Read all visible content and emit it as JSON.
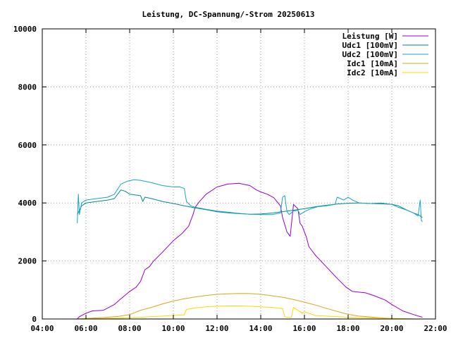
{
  "chart_data": {
    "type": "line",
    "title": "Leistung, DC-Spannung/-Strom 20250613",
    "xlabel": "",
    "ylabel": "",
    "xlim": [
      4,
      22
    ],
    "ylim": [
      0,
      10000
    ],
    "x_ticks": [
      "04:00",
      "06:00",
      "08:00",
      "10:00",
      "12:00",
      "14:00",
      "16:00",
      "18:00",
      "20:00",
      "22:00"
    ],
    "y_ticks": [
      "0",
      "2000",
      "4000",
      "6000",
      "8000",
      "10000"
    ],
    "grid": true,
    "legend_position": "top-right",
    "series": [
      {
        "name": "Leistung [W]",
        "color": "#9400d3",
        "points": [
          [
            5.6,
            0
          ],
          [
            5.7,
            80
          ],
          [
            6.0,
            200
          ],
          [
            6.3,
            280
          ],
          [
            6.8,
            300
          ],
          [
            7.0,
            380
          ],
          [
            7.3,
            500
          ],
          [
            7.6,
            700
          ],
          [
            8.0,
            950
          ],
          [
            8.3,
            1100
          ],
          [
            8.5,
            1300
          ],
          [
            8.7,
            1700
          ],
          [
            8.9,
            1800
          ],
          [
            9.1,
            2000
          ],
          [
            9.5,
            2300
          ],
          [
            10.0,
            2700
          ],
          [
            10.4,
            2950
          ],
          [
            10.7,
            3200
          ],
          [
            10.9,
            3600
          ],
          [
            11.0,
            3850
          ],
          [
            11.2,
            4050
          ],
          [
            11.5,
            4300
          ],
          [
            12.0,
            4550
          ],
          [
            12.5,
            4650
          ],
          [
            13.0,
            4680
          ],
          [
            13.5,
            4600
          ],
          [
            13.8,
            4450
          ],
          [
            14.0,
            4380
          ],
          [
            14.3,
            4300
          ],
          [
            14.6,
            4180
          ],
          [
            14.9,
            3900
          ],
          [
            15.0,
            3500
          ],
          [
            15.2,
            3000
          ],
          [
            15.35,
            2850
          ],
          [
            15.5,
            3950
          ],
          [
            15.7,
            3800
          ],
          [
            15.8,
            3300
          ],
          [
            15.9,
            3200
          ],
          [
            16.0,
            3000
          ],
          [
            16.1,
            2800
          ],
          [
            16.2,
            2500
          ],
          [
            16.5,
            2200
          ],
          [
            17.0,
            1800
          ],
          [
            17.5,
            1400
          ],
          [
            17.9,
            1100
          ],
          [
            18.2,
            950
          ],
          [
            18.8,
            900
          ],
          [
            19.2,
            800
          ],
          [
            19.7,
            650
          ],
          [
            20.0,
            500
          ],
          [
            20.5,
            280
          ],
          [
            21.0,
            150
          ],
          [
            21.4,
            60
          ]
        ]
      },
      {
        "name": "Udc1 [100mV]",
        "color": "#008b8b",
        "points": [
          [
            5.6,
            3600
          ],
          [
            5.8,
            3900
          ],
          [
            6.0,
            4000
          ],
          [
            6.5,
            4050
          ],
          [
            7.0,
            4100
          ],
          [
            7.3,
            4150
          ],
          [
            7.6,
            4450
          ],
          [
            7.8,
            4400
          ],
          [
            8.0,
            4300
          ],
          [
            8.5,
            4250
          ],
          [
            8.6,
            4050
          ],
          [
            8.7,
            4200
          ],
          [
            9.0,
            4150
          ],
          [
            9.5,
            4050
          ],
          [
            10.0,
            3980
          ],
          [
            10.5,
            3900
          ],
          [
            11.0,
            3830
          ],
          [
            11.5,
            3770
          ],
          [
            12.0,
            3700
          ],
          [
            12.5,
            3660
          ],
          [
            13.0,
            3630
          ],
          [
            13.5,
            3610
          ],
          [
            14.0,
            3620
          ],
          [
            14.5,
            3650
          ],
          [
            15.0,
            3700
          ],
          [
            15.5,
            3750
          ],
          [
            16.0,
            3800
          ],
          [
            16.5,
            3870
          ],
          [
            17.0,
            3920
          ],
          [
            17.5,
            3960
          ],
          [
            18.0,
            3990
          ],
          [
            18.5,
            4000
          ],
          [
            19.0,
            3980
          ],
          [
            19.5,
            3970
          ],
          [
            20.0,
            3950
          ],
          [
            20.3,
            3900
          ],
          [
            20.7,
            3750
          ],
          [
            21.0,
            3650
          ],
          [
            21.2,
            3600
          ],
          [
            21.4,
            3500
          ]
        ]
      },
      {
        "name": "Udc2 [100mV]",
        "color": "#1aa3c8",
        "points": [
          [
            5.6,
            3300
          ],
          [
            5.65,
            4300
          ],
          [
            5.7,
            3600
          ],
          [
            5.8,
            4000
          ],
          [
            6.0,
            4100
          ],
          [
            6.5,
            4150
          ],
          [
            7.0,
            4200
          ],
          [
            7.3,
            4300
          ],
          [
            7.6,
            4650
          ],
          [
            7.9,
            4750
          ],
          [
            8.2,
            4800
          ],
          [
            8.5,
            4780
          ],
          [
            9.0,
            4700
          ],
          [
            9.5,
            4600
          ],
          [
            10.0,
            4550
          ],
          [
            10.3,
            4550
          ],
          [
            10.5,
            4500
          ],
          [
            10.6,
            4050
          ],
          [
            10.8,
            3900
          ],
          [
            11.0,
            3850
          ],
          [
            11.5,
            3780
          ],
          [
            12.0,
            3720
          ],
          [
            12.5,
            3680
          ],
          [
            13.0,
            3640
          ],
          [
            13.5,
            3610
          ],
          [
            14.0,
            3600
          ],
          [
            14.5,
            3600
          ],
          [
            14.9,
            3650
          ],
          [
            15.0,
            4200
          ],
          [
            15.1,
            4250
          ],
          [
            15.2,
            3700
          ],
          [
            15.3,
            3600
          ],
          [
            15.5,
            3720
          ],
          [
            15.7,
            3750
          ],
          [
            15.8,
            3600
          ],
          [
            16.0,
            3700
          ],
          [
            16.3,
            3800
          ],
          [
            16.6,
            3870
          ],
          [
            17.0,
            3900
          ],
          [
            17.4,
            3950
          ],
          [
            17.5,
            4200
          ],
          [
            17.8,
            4100
          ],
          [
            18.0,
            4200
          ],
          [
            18.2,
            4100
          ],
          [
            18.5,
            4000
          ],
          [
            19.0,
            3980
          ],
          [
            19.5,
            4000
          ],
          [
            20.0,
            3950
          ],
          [
            20.3,
            3850
          ],
          [
            20.7,
            3750
          ],
          [
            21.0,
            3650
          ],
          [
            21.2,
            3550
          ],
          [
            21.3,
            4100
          ],
          [
            21.35,
            3400
          ],
          [
            21.4,
            3350
          ]
        ]
      },
      {
        "name": "Idc1 [10mA]",
        "color": "#daa520",
        "points": [
          [
            5.6,
            0
          ],
          [
            6.0,
            20
          ],
          [
            6.5,
            40
          ],
          [
            7.0,
            60
          ],
          [
            7.5,
            90
          ],
          [
            8.0,
            150
          ],
          [
            8.5,
            300
          ],
          [
            9.0,
            400
          ],
          [
            9.5,
            520
          ],
          [
            10.0,
            620
          ],
          [
            10.5,
            700
          ],
          [
            11.0,
            760
          ],
          [
            11.5,
            810
          ],
          [
            12.0,
            850
          ],
          [
            12.5,
            870
          ],
          [
            13.0,
            880
          ],
          [
            13.5,
            875
          ],
          [
            14.0,
            850
          ],
          [
            14.5,
            800
          ],
          [
            15.0,
            750
          ],
          [
            15.5,
            670
          ],
          [
            16.0,
            580
          ],
          [
            16.5,
            480
          ],
          [
            17.0,
            370
          ],
          [
            17.5,
            260
          ],
          [
            18.0,
            160
          ],
          [
            18.5,
            100
          ],
          [
            19.0,
            70
          ],
          [
            19.5,
            40
          ],
          [
            20.0,
            20
          ],
          [
            21.0,
            0
          ]
        ]
      },
      {
        "name": "Idc2 [10mA]",
        "color": "#ffd700",
        "points": [
          [
            5.6,
            0
          ],
          [
            6.5,
            10
          ],
          [
            7.5,
            30
          ],
          [
            8.5,
            60
          ],
          [
            9.5,
            100
          ],
          [
            10.5,
            140
          ],
          [
            10.6,
            330
          ],
          [
            11.0,
            380
          ],
          [
            11.5,
            420
          ],
          [
            12.0,
            440
          ],
          [
            12.5,
            450
          ],
          [
            13.0,
            450
          ],
          [
            13.5,
            440
          ],
          [
            14.0,
            420
          ],
          [
            14.5,
            400
          ],
          [
            15.0,
            360
          ],
          [
            15.1,
            80
          ],
          [
            15.2,
            60
          ],
          [
            15.4,
            50
          ],
          [
            15.5,
            400
          ],
          [
            15.7,
            300
          ],
          [
            15.9,
            200
          ],
          [
            16.0,
            250
          ],
          [
            16.5,
            120
          ],
          [
            17.0,
            100
          ],
          [
            17.5,
            80
          ],
          [
            18.0,
            60
          ],
          [
            18.5,
            50
          ],
          [
            19.0,
            40
          ],
          [
            20.0,
            20
          ],
          [
            21.0,
            0
          ]
        ]
      }
    ]
  }
}
